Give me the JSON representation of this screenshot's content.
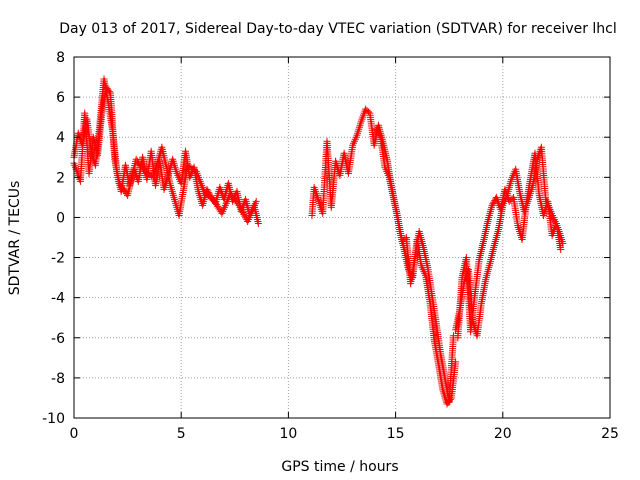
{
  "chart_data": {
    "type": "scatter",
    "title": "Day 013 of 2017, Sidereal Day-to-day VTEC variation (SDTVAR) for receiver lhcl",
    "xlabel": "GPS time / hours",
    "ylabel": "SDTVAR / TECUs",
    "xlim": [
      0,
      25
    ],
    "ylim": [
      -10,
      8
    ],
    "x_ticks": [
      0,
      5,
      10,
      15,
      20,
      25
    ],
    "x_tick_labels": [
      "0",
      "5",
      "10",
      "15",
      "20",
      "25"
    ],
    "y_ticks": [
      -10,
      -8,
      -6,
      -4,
      -2,
      0,
      2,
      4,
      6,
      8
    ],
    "y_tick_labels": [
      "-10",
      "-8",
      "-6",
      "-4",
      "-2",
      "0",
      "2",
      "4",
      "6",
      "8"
    ],
    "grid": true,
    "marker": "plus",
    "color": "#ff0000",
    "series": [
      {
        "name": "segment-1",
        "x": [
          0.0,
          0.2,
          0.4,
          0.6,
          0.8,
          1.0,
          1.2,
          1.4,
          1.6,
          1.8,
          2.0,
          2.2,
          2.4,
          2.6,
          2.8,
          3.0,
          3.2,
          3.4,
          3.6,
          3.8,
          4.0,
          4.2,
          4.4,
          4.6,
          4.8,
          5.0,
          5.2,
          5.4,
          5.6,
          5.8,
          6.0,
          6.2,
          6.4,
          6.6,
          6.8,
          7.0,
          7.2,
          7.4,
          7.6,
          7.8,
          8.0,
          8.2,
          8.4,
          8.6
        ],
        "y": [
          3.0,
          4.2,
          3.6,
          4.9,
          3.3,
          2.6,
          4.6,
          6.9,
          5.7,
          4.3,
          2.3,
          1.3,
          2.6,
          1.6,
          2.4,
          1.8,
          3.0,
          1.9,
          3.3,
          1.6,
          2.8,
          1.4,
          2.1,
          2.9,
          2.2,
          1.7,
          3.3,
          2.0,
          2.5,
          1.3,
          0.6,
          1.4,
          1.0,
          0.7,
          1.5,
          0.9,
          1.7,
          0.8,
          1.3,
          0.3,
          0.9,
          0.1,
          0.6,
          -0.3
        ]
      },
      {
        "name": "segment-1-spread",
        "x": [
          0.0,
          0.3,
          0.5,
          0.7,
          0.9,
          1.1,
          1.3,
          1.5,
          1.7,
          1.9,
          2.1,
          2.5,
          2.9,
          3.3,
          3.7,
          4.1,
          4.5,
          4.9,
          5.3,
          5.7,
          6.1,
          6.5,
          6.9,
          7.3,
          7.7,
          8.1,
          8.5
        ],
        "y": [
          2.7,
          1.8,
          5.2,
          2.2,
          4.0,
          3.1,
          5.2,
          6.5,
          6.2,
          2.9,
          1.7,
          1.1,
          2.9,
          2.3,
          2.0,
          3.5,
          1.6,
          0.1,
          2.6,
          2.3,
          1.2,
          0.9,
          0.2,
          1.2,
          0.6,
          -0.2,
          0.8
        ]
      },
      {
        "name": "segment-2",
        "x": [
          11.1,
          11.2,
          11.3,
          11.6,
          11.8,
          12.0,
          12.2,
          12.4,
          12.6,
          12.8,
          13.0,
          13.2,
          13.4,
          13.6,
          13.8,
          14.0,
          14.2,
          14.4,
          14.6,
          14.8,
          15.0,
          15.2,
          15.4,
          15.6,
          15.8,
          16.0,
          16.2,
          16.4,
          16.6,
          16.8,
          17.0,
          17.2,
          17.4,
          17.6,
          17.8
        ],
        "y": [
          0.1,
          1.5,
          1.2,
          0.2,
          3.8,
          0.5,
          2.8,
          2.1,
          3.2,
          2.2,
          3.6,
          4.1,
          4.8,
          5.4,
          5.2,
          3.6,
          4.6,
          3.8,
          2.9,
          1.6,
          0.5,
          -0.7,
          -1.6,
          -2.6,
          -3.0,
          -1.1,
          -2.4,
          -2.9,
          -4.2,
          -6.1,
          -7.3,
          -8.6,
          -9.3,
          -9.0,
          -7.2
        ]
      },
      {
        "name": "segment-2-spread",
        "x": [
          14.1,
          14.3,
          14.5,
          14.7,
          14.9,
          15.1,
          15.3,
          15.5,
          15.7,
          16.1,
          16.3,
          16.5,
          16.9,
          17.1,
          17.3,
          17.5,
          17.7
        ],
        "y": [
          4.4,
          4.0,
          2.5,
          2.0,
          1.0,
          0.0,
          -1.2,
          -1.0,
          -3.3,
          -0.7,
          -1.5,
          -2.5,
          -5.3,
          -6.8,
          -8.0,
          -9.2,
          -5.9
        ]
      },
      {
        "name": "segment-3",
        "x": [
          17.8,
          18.0,
          18.2,
          18.4,
          18.6,
          18.8,
          19.0,
          19.2,
          19.4,
          19.6,
          19.8,
          20.0,
          20.2,
          20.4,
          20.6,
          20.8,
          21.0,
          21.2,
          21.4,
          21.6,
          21.8,
          22.0,
          22.2,
          22.4,
          22.6,
          22.8
        ],
        "y": [
          -5.6,
          -4.6,
          -3.2,
          -2.6,
          -5.2,
          -5.9,
          -4.3,
          -3.1,
          -2.3,
          -1.4,
          -0.6,
          0.6,
          1.1,
          1.9,
          2.4,
          1.2,
          0.3,
          0.9,
          1.6,
          2.9,
          3.5,
          0.9,
          0.4,
          -0.1,
          -0.6,
          -1.3
        ]
      },
      {
        "name": "segment-3-spread",
        "x": [
          17.9,
          18.1,
          18.3,
          18.5,
          18.7,
          18.9,
          19.1,
          19.3,
          19.5,
          19.7,
          19.9,
          20.1,
          20.3,
          20.5,
          20.7,
          20.9,
          21.1,
          21.3,
          21.5,
          21.7,
          21.9,
          22.1,
          22.3,
          22.5,
          22.7
        ],
        "y": [
          -6.0,
          -3.0,
          -2.0,
          -5.7,
          -3.8,
          -2.1,
          -1.2,
          -0.2,
          0.6,
          1.0,
          0.4,
          1.4,
          0.8,
          1.0,
          -0.4,
          -1.1,
          0.7,
          2.0,
          3.2,
          1.1,
          0.1,
          0.8,
          -0.9,
          -0.3,
          -1.6
        ]
      }
    ]
  }
}
